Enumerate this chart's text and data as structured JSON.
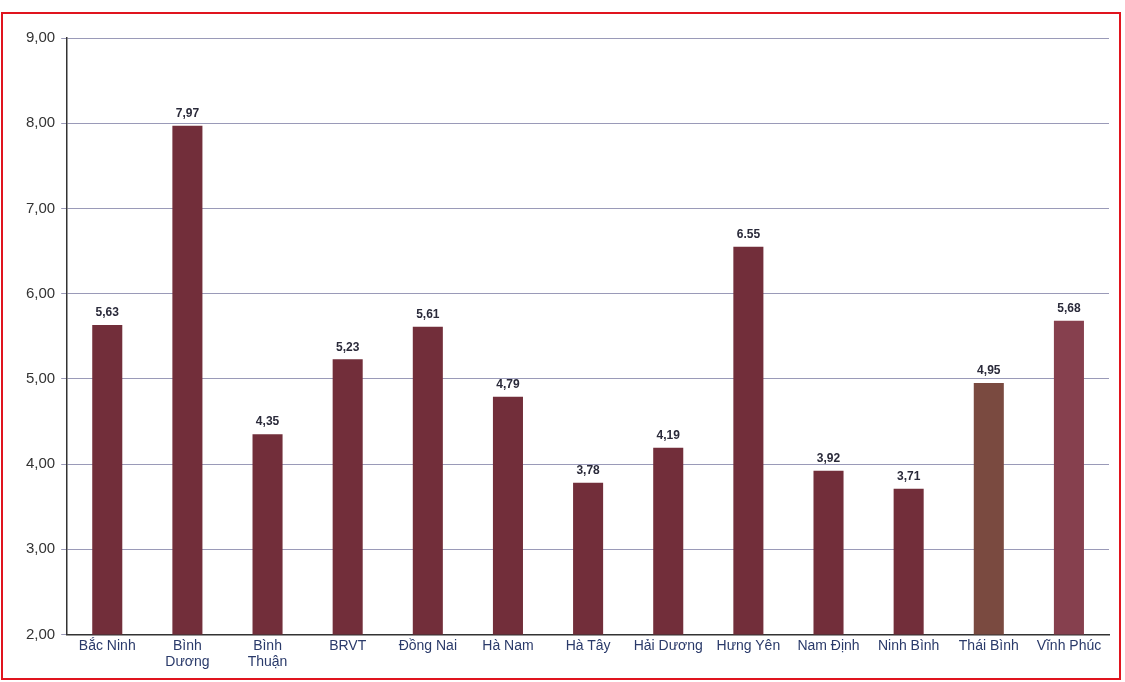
{
  "chart_data": {
    "type": "bar",
    "categories": [
      "Bắc Ninh",
      "Bình\nDương",
      "Bình\nThuận",
      "BRVT",
      "Đồng Nai",
      "Hà Nam",
      "Hà Tây",
      "Hải Dương",
      "Hưng Yên",
      "Nam Định",
      "Ninh Bình",
      "Thái Bình",
      "Vĩnh Phúc"
    ],
    "values": [
      5.63,
      7.97,
      4.35,
      5.23,
      5.61,
      4.79,
      3.78,
      4.19,
      6.55,
      3.92,
      3.71,
      4.95,
      5.68
    ],
    "value_labels": [
      "5,63",
      "7,97",
      "4,35",
      "5,23",
      "5,61",
      "4,79",
      "3,78",
      "4,19",
      "6.55",
      "3,92",
      "3,71",
      "4,95",
      "5,68"
    ],
    "colors": [
      "#722e3a",
      "#722e3a",
      "#722e3a",
      "#722e3a",
      "#722e3a",
      "#722e3a",
      "#722e3a",
      "#722e3a",
      "#722e3a",
      "#722e3a",
      "#722e3a",
      "#7a4a40",
      "#86404e"
    ],
    "ylim": [
      2,
      9
    ],
    "yticks": [
      {
        "value": 2,
        "label": "2,00"
      },
      {
        "value": 3,
        "label": "3,00"
      },
      {
        "value": 4,
        "label": "4,00"
      },
      {
        "value": 5,
        "label": "5,00"
      },
      {
        "value": 6,
        "label": "6,00"
      },
      {
        "value": 7,
        "label": "7,00"
      },
      {
        "value": 8,
        "label": "8,00"
      },
      {
        "value": 9,
        "label": "9,00"
      }
    ],
    "grid": "y"
  }
}
